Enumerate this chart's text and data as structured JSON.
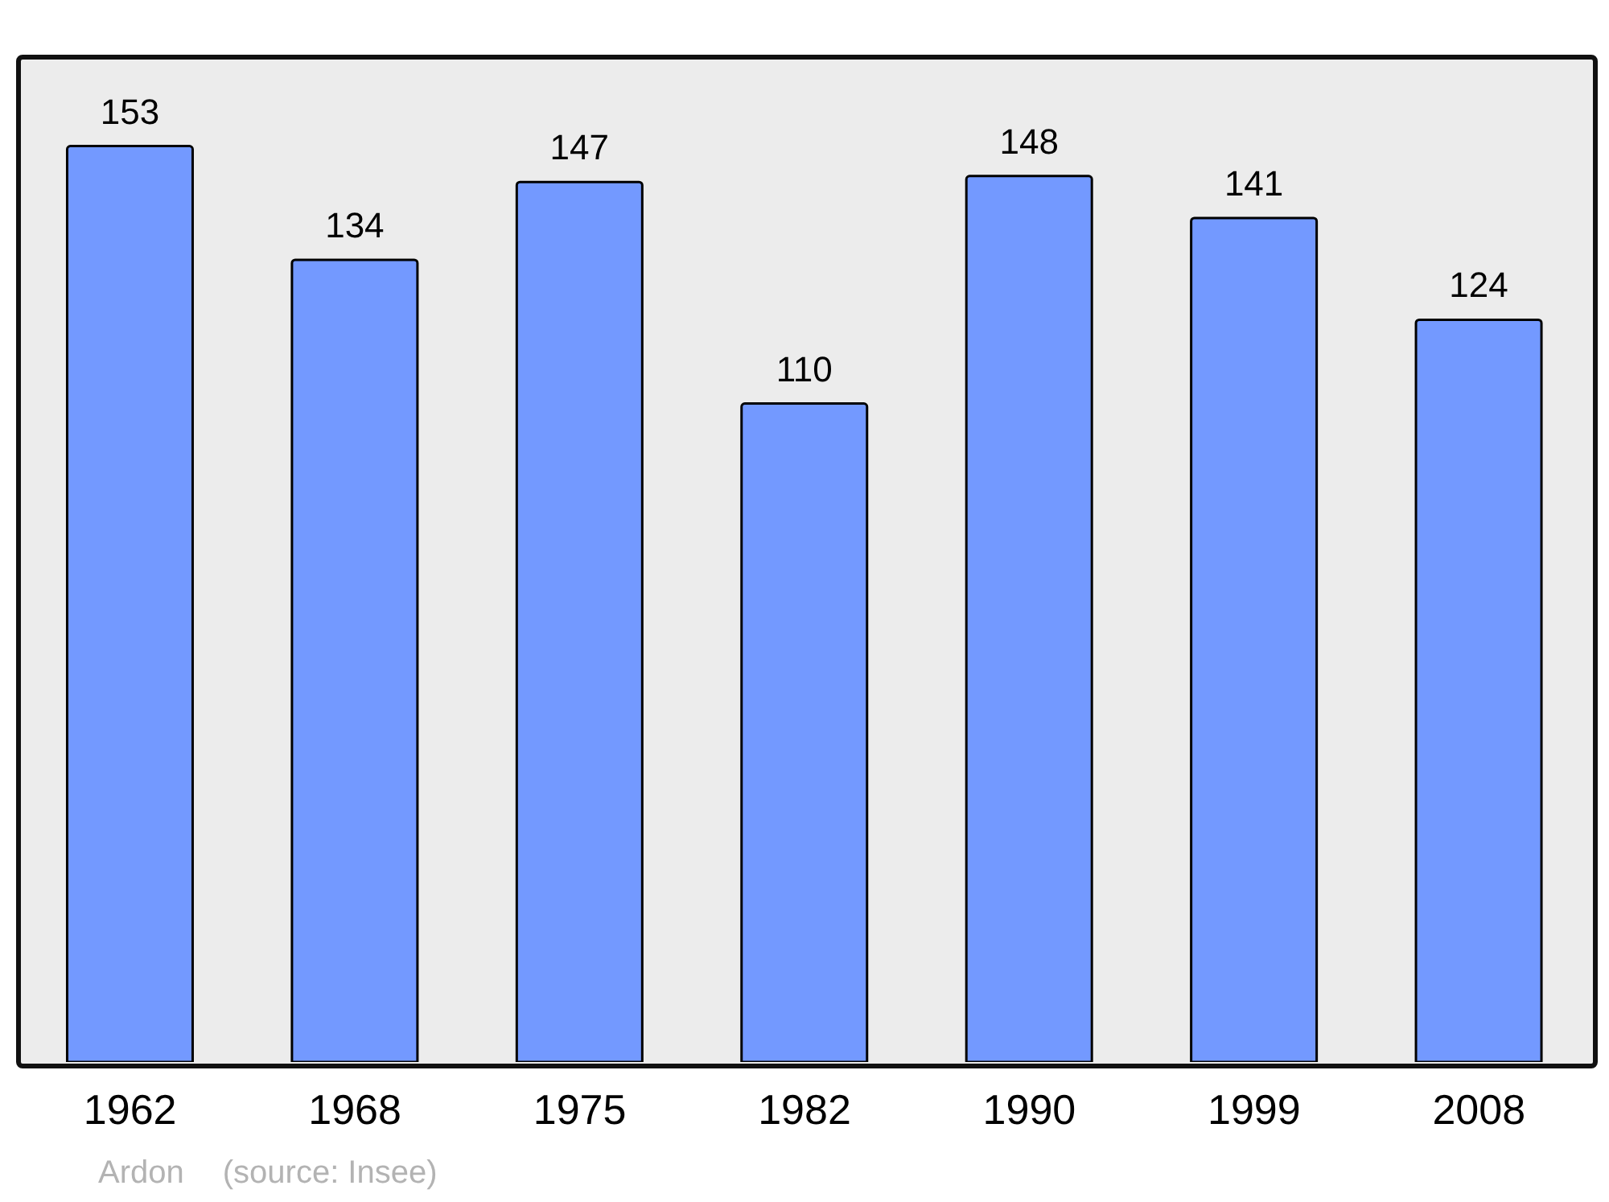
{
  "chart_data": {
    "type": "bar",
    "categories": [
      "1962",
      "1968",
      "1975",
      "1982",
      "1990",
      "1999",
      "2008"
    ],
    "values": [
      153,
      134,
      147,
      110,
      148,
      141,
      124
    ],
    "color": "#7399ff",
    "ylim": [
      0,
      168
    ],
    "tick_labels": "x",
    "data_labels": true,
    "grid": false,
    "legend": false,
    "annotations": [
      "Ardon",
      "(source: Insee)"
    ]
  }
}
